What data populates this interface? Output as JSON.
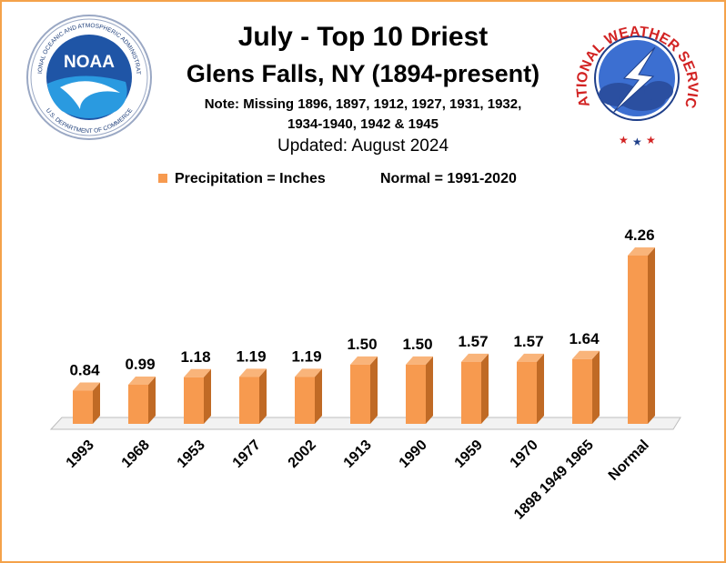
{
  "header": {
    "title": "July - Top 10 Driest",
    "subtitle": "Glens Falls, NY (1894-present)",
    "note_line1": "Note: Missing 1896, 1897, 1912, 1927, 1931, 1932,",
    "note_line2": "1934-1940, 1942 & 1945",
    "updated": "Updated: August 2024"
  },
  "legend": {
    "series_label": "Precipitation = Inches",
    "normal_label": "Normal = 1991-2020"
  },
  "logos": {
    "noaa": {
      "center_text": "NOAA",
      "ring_text": "NATIONAL OCEANIC AND ATMOSPHERIC ADMINISTRATION",
      "bottom_text": "U.S. DEPARTMENT OF COMMERCE"
    },
    "nws": {
      "ring_text": "NATIONAL WEATHER SERVICE"
    }
  },
  "colors": {
    "bar_face": "#f79a4f",
    "bar_side": "#c06a25",
    "bar_top": "#f9b47a",
    "border": "#f4a24a"
  },
  "chart_data": {
    "type": "bar",
    "categories": [
      "1993",
      "1968",
      "1953",
      "1977",
      "2002",
      "1913",
      "1990",
      "1959",
      "1970",
      "1898 1949 1965",
      "Normal"
    ],
    "values": [
      0.84,
      0.99,
      1.18,
      1.19,
      1.19,
      1.5,
      1.5,
      1.57,
      1.57,
      1.64,
      4.26
    ],
    "labels": [
      "0.84",
      "0.99",
      "1.18",
      "1.19",
      "1.19",
      "1.50",
      "1.50",
      "1.57",
      "1.57",
      "1.64",
      "4.26"
    ],
    "title": "July - Top 10 Driest",
    "xlabel": "",
    "ylabel": "",
    "ylim": [
      0,
      4.5
    ],
    "grid": false,
    "legend_position": "top"
  }
}
